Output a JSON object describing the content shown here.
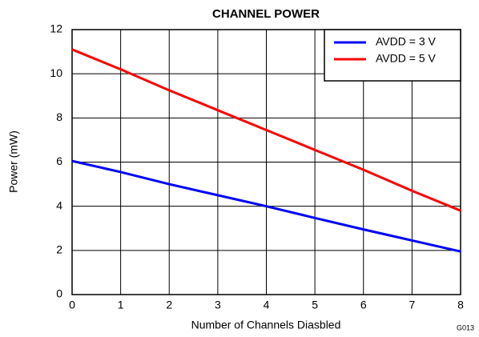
{
  "chart_data": {
    "type": "line",
    "title": "CHANNEL POWER",
    "xlabel": "Number of Channels Diasbled",
    "ylabel": "Power (mW)",
    "annotation": "G013",
    "x": [
      0,
      1,
      2,
      3,
      4,
      5,
      6,
      7,
      8
    ],
    "series": [
      {
        "name": "AVDD = 3 V",
        "color": "#0000ff",
        "values": [
          6.05,
          5.55,
          5.0,
          4.5,
          4.0,
          3.47,
          2.95,
          2.45,
          1.95
        ]
      },
      {
        "name": "AVDD = 5 V",
        "color": "#ff0000",
        "values": [
          11.1,
          10.2,
          9.25,
          8.35,
          7.45,
          6.55,
          5.65,
          4.7,
          3.8
        ]
      }
    ],
    "xlim": [
      0,
      8
    ],
    "xticks": [
      0,
      1,
      2,
      3,
      4,
      5,
      6,
      7,
      8
    ],
    "ylim": [
      0,
      12
    ],
    "yticks": [
      0,
      2,
      4,
      6,
      8,
      10,
      12
    ],
    "grid": true,
    "legend": "upper right"
  }
}
